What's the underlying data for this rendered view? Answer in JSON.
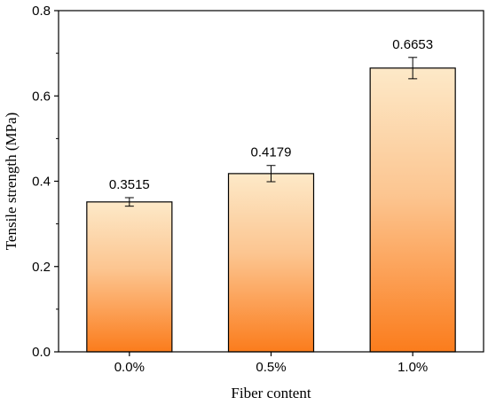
{
  "chart_data": {
    "type": "bar",
    "title": "",
    "xlabel": "Fiber content",
    "ylabel": "Tensile strength (MPa)",
    "categories": [
      "0.0%",
      "0.5%",
      "1.0%"
    ],
    "values": [
      0.3515,
      0.4179,
      0.6653
    ],
    "error": [
      0.01,
      0.019,
      0.025
    ],
    "data_labels": [
      "0.3515",
      "0.4179",
      "0.6653"
    ],
    "ylim": [
      0.0,
      0.8
    ],
    "yticks": [
      0.0,
      0.2,
      0.4,
      0.6,
      0.8
    ],
    "ytick_labels": [
      "0.0",
      "0.2",
      "0.4",
      "0.6",
      "0.8"
    ],
    "grid": false,
    "legend": "none",
    "colors": {
      "bar_top": "#fde9c8",
      "bar_bottom": "#fb7c1c",
      "outline": "#000000"
    }
  }
}
